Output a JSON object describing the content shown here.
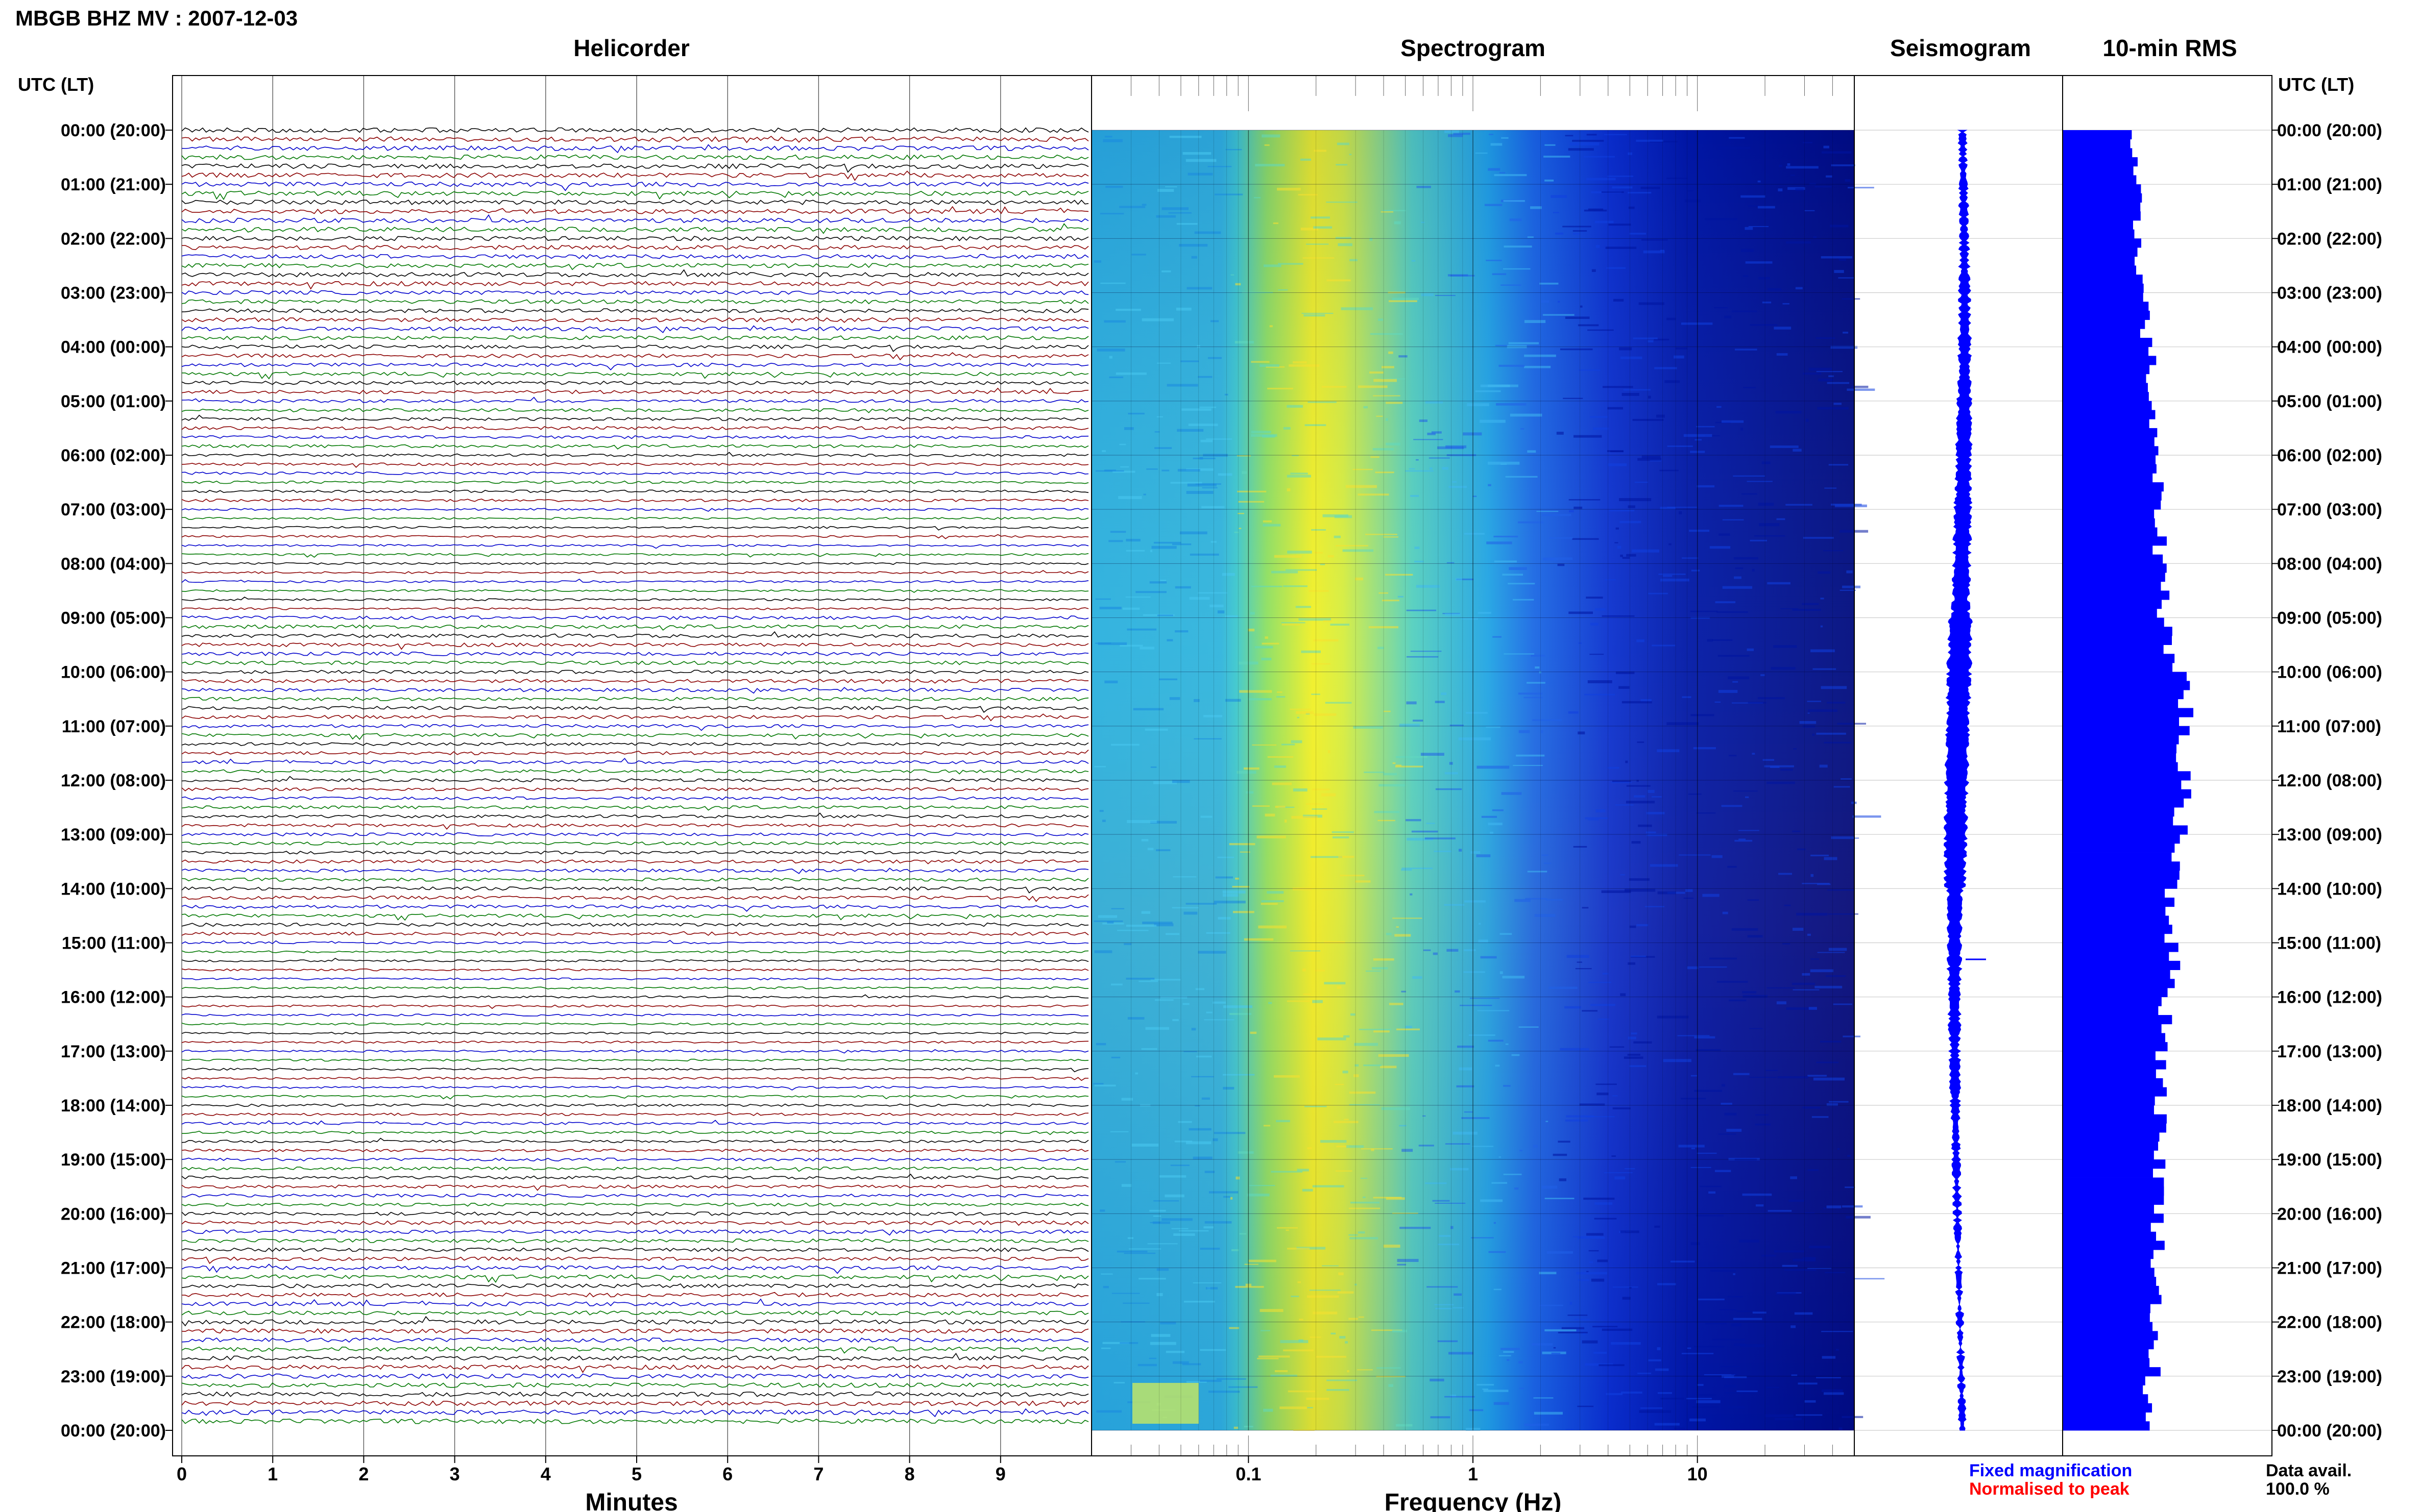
{
  "header": {
    "station_title": "MBGB BHZ MV : 2007-12-03"
  },
  "panels": {
    "helicorder": "Helicorder",
    "spectrogram": "Spectrogram",
    "seismogram": "Seismogram",
    "rms": "10-min RMS"
  },
  "axis": {
    "time_label": "UTC (LT)",
    "minutes_label": "Minutes",
    "frequency_label": "Frequency (Hz)"
  },
  "footer": {
    "fixed_magnification": "Fixed magnification",
    "normalised_to_peak": "Normalised to peak",
    "data_avail_label": "Data avail.",
    "data_avail_value": "100.0 %"
  },
  "colors": {
    "trace_cycle": [
      "#000000",
      "#8b0000",
      "#0000cc",
      "#007700"
    ],
    "fixed_magnification": "#0000ff",
    "normalised_to_peak": "#ff0000",
    "rms_bar": "#0000ff",
    "seismogram": "#0000ff"
  },
  "chart_data": {
    "type": "helicorder",
    "time_ticks": [
      "00:00 (20:00)",
      "01:00 (21:00)",
      "02:00 (22:00)",
      "03:00 (23:00)",
      "04:00 (00:00)",
      "05:00 (01:00)",
      "06:00 (02:00)",
      "07:00 (03:00)",
      "08:00 (04:00)",
      "09:00 (05:00)",
      "10:00 (06:00)",
      "11:00 (07:00)",
      "12:00 (08:00)",
      "13:00 (09:00)",
      "14:00 (10:00)",
      "15:00 (11:00)",
      "16:00 (12:00)",
      "17:00 (13:00)",
      "18:00 (14:00)",
      "19:00 (15:00)",
      "20:00 (16:00)",
      "21:00 (17:00)",
      "22:00 (18:00)",
      "23:00 (19:00)",
      "00:00 (20:00)"
    ],
    "minute_ticks": [
      "0",
      "1",
      "2",
      "3",
      "4",
      "5",
      "6",
      "7",
      "8",
      "9"
    ],
    "frequency_ticks": [
      "0.1",
      "1",
      "10"
    ],
    "xlim_minutes": [
      0,
      10
    ],
    "xlim_frequency_hz": [
      0.02,
      50
    ],
    "frequency_scale": "log",
    "rows": 144,
    "rms_hourly_relative": [
      0.35,
      0.37,
      0.39,
      0.42,
      0.44,
      0.45,
      0.47,
      0.49,
      0.51,
      0.54,
      0.62,
      0.6,
      0.6,
      0.58,
      0.55,
      0.55,
      0.52,
      0.5,
      0.49,
      0.49,
      0.48,
      0.47,
      0.46,
      0.42
    ]
  }
}
